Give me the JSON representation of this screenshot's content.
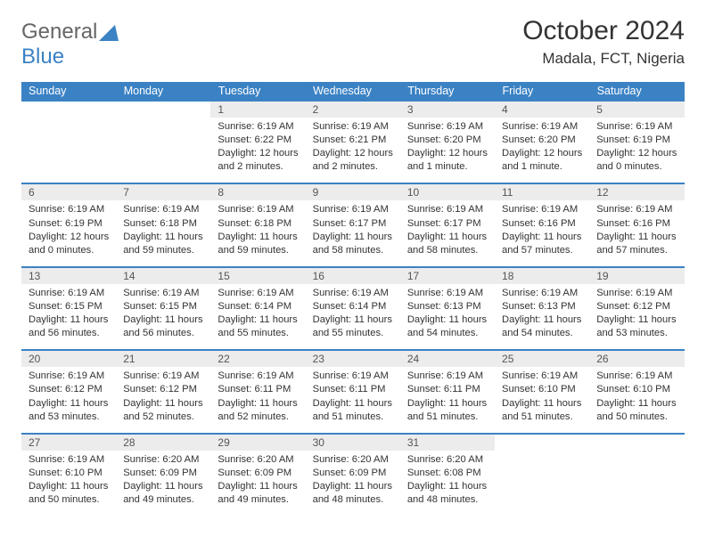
{
  "brand": {
    "part1": "General",
    "part2": "Blue"
  },
  "title": "October 2024",
  "location": "Madala, FCT, Nigeria",
  "colors": {
    "accent": "#3b82c4",
    "dayheader_bg": "#ececec",
    "text": "#333333",
    "background": "#ffffff"
  },
  "weekdays": [
    "Sunday",
    "Monday",
    "Tuesday",
    "Wednesday",
    "Thursday",
    "Friday",
    "Saturday"
  ],
  "weeks": [
    [
      null,
      null,
      {
        "d": "1",
        "sunrise": "6:19 AM",
        "sunset": "6:22 PM",
        "daylight": "12 hours and 2 minutes."
      },
      {
        "d": "2",
        "sunrise": "6:19 AM",
        "sunset": "6:21 PM",
        "daylight": "12 hours and 2 minutes."
      },
      {
        "d": "3",
        "sunrise": "6:19 AM",
        "sunset": "6:20 PM",
        "daylight": "12 hours and 1 minute."
      },
      {
        "d": "4",
        "sunrise": "6:19 AM",
        "sunset": "6:20 PM",
        "daylight": "12 hours and 1 minute."
      },
      {
        "d": "5",
        "sunrise": "6:19 AM",
        "sunset": "6:19 PM",
        "daylight": "12 hours and 0 minutes."
      }
    ],
    [
      {
        "d": "6",
        "sunrise": "6:19 AM",
        "sunset": "6:19 PM",
        "daylight": "12 hours and 0 minutes."
      },
      {
        "d": "7",
        "sunrise": "6:19 AM",
        "sunset": "6:18 PM",
        "daylight": "11 hours and 59 minutes."
      },
      {
        "d": "8",
        "sunrise": "6:19 AM",
        "sunset": "6:18 PM",
        "daylight": "11 hours and 59 minutes."
      },
      {
        "d": "9",
        "sunrise": "6:19 AM",
        "sunset": "6:17 PM",
        "daylight": "11 hours and 58 minutes."
      },
      {
        "d": "10",
        "sunrise": "6:19 AM",
        "sunset": "6:17 PM",
        "daylight": "11 hours and 58 minutes."
      },
      {
        "d": "11",
        "sunrise": "6:19 AM",
        "sunset": "6:16 PM",
        "daylight": "11 hours and 57 minutes."
      },
      {
        "d": "12",
        "sunrise": "6:19 AM",
        "sunset": "6:16 PM",
        "daylight": "11 hours and 57 minutes."
      }
    ],
    [
      {
        "d": "13",
        "sunrise": "6:19 AM",
        "sunset": "6:15 PM",
        "daylight": "11 hours and 56 minutes."
      },
      {
        "d": "14",
        "sunrise": "6:19 AM",
        "sunset": "6:15 PM",
        "daylight": "11 hours and 56 minutes."
      },
      {
        "d": "15",
        "sunrise": "6:19 AM",
        "sunset": "6:14 PM",
        "daylight": "11 hours and 55 minutes."
      },
      {
        "d": "16",
        "sunrise": "6:19 AM",
        "sunset": "6:14 PM",
        "daylight": "11 hours and 55 minutes."
      },
      {
        "d": "17",
        "sunrise": "6:19 AM",
        "sunset": "6:13 PM",
        "daylight": "11 hours and 54 minutes."
      },
      {
        "d": "18",
        "sunrise": "6:19 AM",
        "sunset": "6:13 PM",
        "daylight": "11 hours and 54 minutes."
      },
      {
        "d": "19",
        "sunrise": "6:19 AM",
        "sunset": "6:12 PM",
        "daylight": "11 hours and 53 minutes."
      }
    ],
    [
      {
        "d": "20",
        "sunrise": "6:19 AM",
        "sunset": "6:12 PM",
        "daylight": "11 hours and 53 minutes."
      },
      {
        "d": "21",
        "sunrise": "6:19 AM",
        "sunset": "6:12 PM",
        "daylight": "11 hours and 52 minutes."
      },
      {
        "d": "22",
        "sunrise": "6:19 AM",
        "sunset": "6:11 PM",
        "daylight": "11 hours and 52 minutes."
      },
      {
        "d": "23",
        "sunrise": "6:19 AM",
        "sunset": "6:11 PM",
        "daylight": "11 hours and 51 minutes."
      },
      {
        "d": "24",
        "sunrise": "6:19 AM",
        "sunset": "6:11 PM",
        "daylight": "11 hours and 51 minutes."
      },
      {
        "d": "25",
        "sunrise": "6:19 AM",
        "sunset": "6:10 PM",
        "daylight": "11 hours and 51 minutes."
      },
      {
        "d": "26",
        "sunrise": "6:19 AM",
        "sunset": "6:10 PM",
        "daylight": "11 hours and 50 minutes."
      }
    ],
    [
      {
        "d": "27",
        "sunrise": "6:19 AM",
        "sunset": "6:10 PM",
        "daylight": "11 hours and 50 minutes."
      },
      {
        "d": "28",
        "sunrise": "6:20 AM",
        "sunset": "6:09 PM",
        "daylight": "11 hours and 49 minutes."
      },
      {
        "d": "29",
        "sunrise": "6:20 AM",
        "sunset": "6:09 PM",
        "daylight": "11 hours and 49 minutes."
      },
      {
        "d": "30",
        "sunrise": "6:20 AM",
        "sunset": "6:09 PM",
        "daylight": "11 hours and 48 minutes."
      },
      {
        "d": "31",
        "sunrise": "6:20 AM",
        "sunset": "6:08 PM",
        "daylight": "11 hours and 48 minutes."
      },
      null,
      null
    ]
  ],
  "labels": {
    "sunrise": "Sunrise:",
    "sunset": "Sunset:",
    "daylight": "Daylight:"
  }
}
